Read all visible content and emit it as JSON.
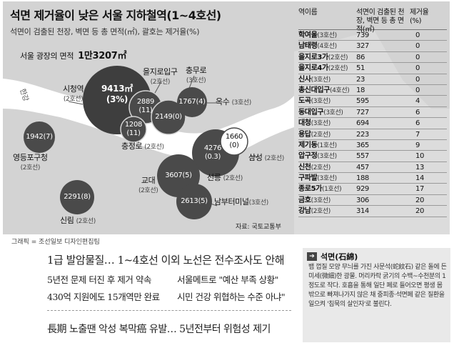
{
  "graphic": {
    "title": "석면 제거율이 낮은 서울 지하철역(1~4호선)",
    "subtitle": "석면이 검출된 천장, 벽면 등 총 면적(㎡), 괄호는 제거율(%)",
    "plaza_label": "서울 광장의 면적",
    "plaza_value": "1만3207㎡",
    "river_label": "한강",
    "source": "자료: 국토교통부",
    "colors": {
      "background": "#d3d3d3",
      "bubble": "#4a4a4a",
      "line": "#666666",
      "river": "#ffffff",
      "plaza": "#3a3a3a"
    },
    "map_stations": [
      {
        "name": "시청역",
        "line": "(2호선)",
        "value_text": "9413㎡",
        "pct_text": "(3%)"
      },
      {
        "name": "을지로입구",
        "line": "(2호선)",
        "value_text": "2889",
        "pct_text": "(11)"
      },
      {
        "name": "충무로",
        "line": "(3호선)"
      },
      {
        "name": "",
        "line": "",
        "value_text": "1767(4)"
      },
      {
        "name": "옥수",
        "line": "(3호선)"
      },
      {
        "name": "",
        "line": "",
        "value_text": "2149(0)"
      },
      {
        "name": "충정로",
        "line": "(2호선)",
        "value_text": "1208",
        "pct_text": "(11)"
      },
      {
        "name": "영등포구청",
        "line": "(2호선)",
        "value_text": "1942(7)"
      },
      {
        "name": "",
        "line": "",
        "value_text": "4276",
        "pct_text": "(0.3)"
      },
      {
        "name": "",
        "line": "",
        "value_text": "1660",
        "pct_text": "(0)"
      },
      {
        "name": "삼성",
        "line": "(2호선)"
      },
      {
        "name": "선릉",
        "line": "(2호선)"
      },
      {
        "name": "교대",
        "line": "(2호선)",
        "value_text": "3607(5)"
      },
      {
        "name": "",
        "line": "",
        "value_text": "2613(5)"
      },
      {
        "name": "남부터미널",
        "line": "(3호선)"
      },
      {
        "name": "신림",
        "line": "(2호선)",
        "value_text": "2291(8)"
      }
    ]
  },
  "table": {
    "headers": {
      "station": "역이름",
      "area": "석면이 검출된 천장, 벽면 등 총 면적(㎡)",
      "rate": "제거율 (%)"
    },
    "rows": [
      {
        "name": "학여울",
        "line": "(3호선)",
        "area": "739",
        "rate": "0"
      },
      {
        "name": "남태령",
        "line": "(4호선)",
        "area": "327",
        "rate": "0"
      },
      {
        "name": "을지로3가",
        "line": "(2호선)",
        "area": "86",
        "rate": "0"
      },
      {
        "name": "을지로4가",
        "line": "(2호선)",
        "area": "51",
        "rate": "0"
      },
      {
        "name": "신사",
        "line": "(3호선)",
        "area": "23",
        "rate": "0"
      },
      {
        "name": "총신대입구",
        "line": "(4호선)",
        "area": "18",
        "rate": "0"
      },
      {
        "name": "도곡",
        "line": "(3호선)",
        "area": "595",
        "rate": "4"
      },
      {
        "name": "동대입구",
        "line": "(3호선)",
        "area": "727",
        "rate": "6"
      },
      {
        "name": "대청",
        "line": "(3호선)",
        "area": "694",
        "rate": "6"
      },
      {
        "name": "용답",
        "line": "(2호선)",
        "area": "223",
        "rate": "7"
      },
      {
        "name": "제기동",
        "line": "(1호선)",
        "area": "365",
        "rate": "9"
      },
      {
        "name": "압구정",
        "line": "(3호선)",
        "area": "557",
        "rate": "10"
      },
      {
        "name": "신천",
        "line": "(2호선)",
        "area": "457",
        "rate": "13"
      },
      {
        "name": "구파발",
        "line": "(3호선)",
        "area": "188",
        "rate": "14"
      },
      {
        "name": "종로5가",
        "line": "(1호선)",
        "area": "929",
        "rate": "17"
      },
      {
        "name": "금호",
        "line": "(3호선)",
        "area": "306",
        "rate": "20"
      },
      {
        "name": "강남",
        "line": "(2호선)",
        "area": "314",
        "rate": "20"
      }
    ]
  },
  "credit": "그래픽 = 조선일보 디자인편집팀",
  "article": {
    "headline": "1급 발암물질… 1~4호선 이외 노선은 전수조사도 안해",
    "sub1": "5년전 문제 터진 후 제거 약속",
    "sub2": "서울메트로 \"예산 부족 상황\"",
    "sub3": "430억 지원에도 15개역만 완료",
    "sub4": "시민 건강 위협하는 수준 아냐\"",
    "headline2": "長期 노출땐 악성 복막癌 유발… 5년전부터 위험성 제기"
  },
  "glossary": {
    "arrow": "➔",
    "term": "석면(石綿)",
    "body": "뱀 껍질 모양 무늬를 가진 사문석(蛇紋石) 같은 돌에 든 미세(微細)한 광물. 머리카락 굵기의 수백~수천분의 1 정도로 작다. 호흡을 통해 일단 폐로 들어오면 평생 몸 밖으로 빠져나가지 않은 채 중피종·석면폐 같은 질환을 일으켜 '침묵의 살인자'로 불린다."
  }
}
